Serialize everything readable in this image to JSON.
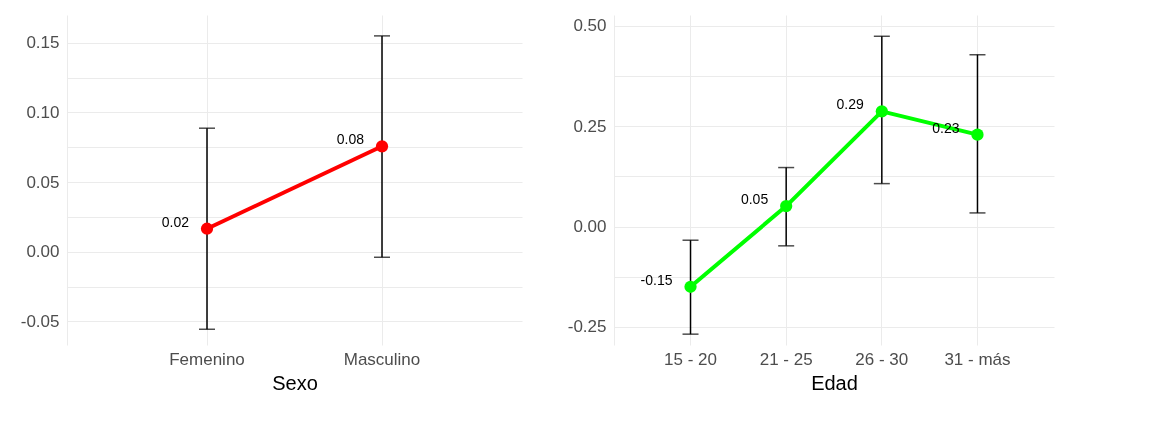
{
  "chart_data": [
    {
      "type": "line",
      "xlabel": "Sexo",
      "categories": [
        "Femenino",
        "Masculino"
      ],
      "marker": "circle",
      "grid": true,
      "ylim": [
        -0.067,
        0.17
      ],
      "yticks": [
        {
          "value": -0.05,
          "label": "-0.05"
        },
        {
          "value": -0.025,
          "label": null
        },
        {
          "value": 0,
          "label": "0.00"
        },
        {
          "value": 0.025,
          "label": null
        },
        {
          "value": 0.05,
          "label": "0.05"
        },
        {
          "value": 0.075,
          "label": null
        },
        {
          "value": 0.1,
          "label": "0.10"
        },
        {
          "value": 0.125,
          "label": null
        },
        {
          "value": 0.15,
          "label": "0.15"
        }
      ],
      "series": [
        {
          "color": "#ff0000",
          "values": [
            0.0165,
            0.0757
          ],
          "errors": [
            [
              -0.0557,
              0.0887
            ],
            [
              -0.004,
              0.155
            ]
          ],
          "value_labels": [
            "0.02",
            "0.08"
          ]
        }
      ]
    },
    {
      "type": "line",
      "xlabel": "Edad",
      "categories": [
        "15 - 20",
        "21 - 25",
        "26 - 30",
        "31 - más"
      ],
      "marker": "circle",
      "grid": true,
      "ylim": [
        -0.295,
        0.527
      ],
      "yticks": [
        {
          "value": -0.25,
          "label": "-0.25"
        },
        {
          "value": -0.125,
          "label": null
        },
        {
          "value": 0,
          "label": "0.00"
        },
        {
          "value": 0.125,
          "label": null
        },
        {
          "value": 0.25,
          "label": "0.25"
        },
        {
          "value": 0.375,
          "label": null
        },
        {
          "value": 0.5,
          "label": "0.50"
        }
      ],
      "series": [
        {
          "color": "#00ff00",
          "values": [
            -0.15,
            0.051,
            0.287,
            0.229
          ],
          "errors": [
            [
              -0.268,
              -0.034
            ],
            [
              -0.048,
              0.147
            ],
            [
              0.107,
              0.474
            ],
            [
              0.034,
              0.428
            ]
          ],
          "value_labels": [
            "-0.15",
            "0.05",
            "0.29",
            "0.23"
          ]
        }
      ]
    }
  ]
}
